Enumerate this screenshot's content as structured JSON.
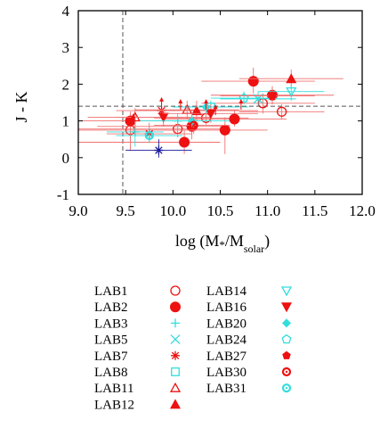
{
  "chart_data": {
    "type": "scatter",
    "xlabel_main": "log (M",
    "xlabel_star": "*",
    "xlabel_mid": "/M",
    "xlabel_sub": "solar",
    "xlabel_end": ")",
    "ylabel": "J - K",
    "xlim": [
      9.0,
      12.0
    ],
    "ylim": [
      -1,
      4
    ],
    "xticks": [
      "9.0",
      "9.5",
      "10.0",
      "10.5",
      "11.0",
      "11.5",
      "12.0"
    ],
    "yticks": [
      "-1",
      "0",
      "1",
      "2",
      "3",
      "4"
    ],
    "reference_lines": {
      "vertical_x": 9.47,
      "horizontal_y": 1.4
    },
    "colors": {
      "red": "#ee1111",
      "cyan": "#33dddd",
      "navy": "#1a1a99",
      "axis": "#000000",
      "guide": "#555555"
    },
    "legend_position": "bottom",
    "legend": [
      {
        "label": "LAB1",
        "marker": "open-circle",
        "color": "#ee1111"
      },
      {
        "label": "LAB2",
        "marker": "filled-circle",
        "color": "#ee1111"
      },
      {
        "label": "LAB3",
        "marker": "plus",
        "color": "#33dddd"
      },
      {
        "label": "LAB5",
        "marker": "x",
        "color": "#33dddd"
      },
      {
        "label": "LAB7",
        "marker": "asterisk",
        "color": "#ee1111"
      },
      {
        "label": "LAB8",
        "marker": "open-square",
        "color": "#33dddd"
      },
      {
        "label": "LAB11",
        "marker": "open-triangle",
        "color": "#ee1111"
      },
      {
        "label": "LAB12",
        "marker": "filled-triangle",
        "color": "#ee1111"
      },
      {
        "label": "LAB14",
        "marker": "open-triangle-down",
        "color": "#33dddd"
      },
      {
        "label": "LAB16",
        "marker": "filled-triangle-down",
        "color": "#ee1111"
      },
      {
        "label": "LAB20",
        "marker": "filled-diamond",
        "color": "#33dddd"
      },
      {
        "label": "LAB24",
        "marker": "open-pentagon",
        "color": "#33dddd"
      },
      {
        "label": "LAB27",
        "marker": "filled-pentagon",
        "color": "#ee1111"
      },
      {
        "label": "LAB30",
        "marker": "dot-circle",
        "color": "#ee1111"
      },
      {
        "label": "LAB31",
        "marker": "dot-circle",
        "color": "#33dddd"
      }
    ],
    "points": [
      {
        "x": 9.55,
        "y": 0.75,
        "marker": "open-circle",
        "color": "#ee1111",
        "xerr": [
          9.0,
          10.0
        ],
        "yerr": [
          0.45,
          1.0
        ]
      },
      {
        "x": 10.05,
        "y": 0.78,
        "marker": "open-circle",
        "color": "#ee1111",
        "xerr": [
          9.0,
          10.5
        ],
        "yerr": [
          0.55,
          1.0
        ]
      },
      {
        "x": 10.35,
        "y": 1.08,
        "marker": "open-circle",
        "color": "#ee1111",
        "xerr": [
          9.8,
          10.8
        ],
        "yerr": [
          0.9,
          1.25
        ]
      },
      {
        "x": 10.95,
        "y": 1.48,
        "marker": "open-circle",
        "color": "#ee1111",
        "xerr": [
          10.3,
          11.5
        ],
        "yerr": [
          1.2,
          1.75
        ]
      },
      {
        "x": 11.15,
        "y": 1.25,
        "marker": "open-circle",
        "color": "#ee1111",
        "xerr": [
          10.7,
          11.6
        ],
        "yerr": [
          1.05,
          1.45
        ]
      },
      {
        "x": 9.55,
        "y": 1.0,
        "marker": "filled-circle",
        "color": "#ee1111",
        "xerr": [
          9.0,
          10.0
        ],
        "yerr": [
          0.2,
          1.25
        ]
      },
      {
        "x": 10.12,
        "y": 0.42,
        "marker": "filled-circle",
        "color": "#ee1111",
        "xerr": [
          9.0,
          10.5
        ],
        "yerr": [
          0.1,
          0.75
        ]
      },
      {
        "x": 10.2,
        "y": 0.85,
        "marker": "filled-circle",
        "color": "#ee1111",
        "xerr": [
          9.2,
          10.6
        ],
        "yerr": [
          0.5,
          1.2
        ]
      },
      {
        "x": 10.55,
        "y": 0.75,
        "marker": "filled-circle",
        "color": "#ee1111",
        "xerr": [
          9.9,
          11.0
        ],
        "yerr": [
          0.1,
          1.1
        ]
      },
      {
        "x": 10.65,
        "y": 1.05,
        "marker": "filled-circle",
        "color": "#ee1111",
        "xerr": [
          9.9,
          11.2
        ],
        "yerr": [
          0.85,
          1.3
        ]
      },
      {
        "x": 10.85,
        "y": 2.08,
        "marker": "filled-circle",
        "color": "#ee1111",
        "xerr": [
          10.3,
          11.5
        ],
        "yerr": [
          1.75,
          2.45
        ]
      },
      {
        "x": 11.05,
        "y": 1.7,
        "marker": "filled-circle",
        "color": "#ee1111",
        "xerr": [
          10.4,
          11.7
        ],
        "yerr": [
          1.45,
          1.95
        ]
      },
      {
        "x": 9.6,
        "y": 0.7,
        "marker": "plus",
        "color": "#33dddd",
        "xerr": [
          9.3,
          9.9
        ],
        "yerr": [
          0.3,
          1.0
        ]
      },
      {
        "x": 10.05,
        "y": 1.0,
        "marker": "plus",
        "color": "#33dddd",
        "xerr": [
          9.6,
          10.4
        ],
        "yerr": [
          0.8,
          1.2
        ]
      },
      {
        "x": 10.9,
        "y": 1.6,
        "marker": "x",
        "color": "#33dddd",
        "xerr": [
          10.5,
          11.3
        ],
        "yerr": [
          1.4,
          1.8
        ]
      },
      {
        "x": 9.75,
        "y": 0.65,
        "marker": "asterisk",
        "color": "#ee1111",
        "xerr": [
          9.3,
          10.2
        ],
        "yerr": [
          0.4,
          0.95
        ]
      },
      {
        "x": 9.85,
        "y": 0.2,
        "marker": "asterisk",
        "color": "#1a1a99",
        "xerr": [
          9.5,
          10.2
        ],
        "yerr": [
          0.0,
          0.5
        ]
      },
      {
        "x": 9.88,
        "y": 1.28,
        "marker": "asterisk",
        "color": "#ee1111",
        "xerr": [
          9.4,
          10.3
        ],
        "yerr": [
          1.05,
          1.5
        ]
      },
      {
        "x": 10.4,
        "y": 1.38,
        "marker": "open-square",
        "color": "#33dddd",
        "xerr": [
          10.0,
          10.8
        ],
        "yerr": [
          1.2,
          1.55
        ]
      },
      {
        "x": 9.6,
        "y": 1.1,
        "marker": "open-triangle",
        "color": "#ee1111",
        "xerr": [
          9.1,
          10.1
        ],
        "yerr": [
          0.8,
          1.35
        ]
      },
      {
        "x": 10.15,
        "y": 1.3,
        "marker": "open-triangle",
        "color": "#ee1111",
        "xerr": [
          9.6,
          10.7
        ],
        "yerr": [
          1.05,
          1.55
        ]
      },
      {
        "x": 10.25,
        "y": 1.28,
        "marker": "filled-triangle",
        "color": "#ee1111",
        "xerr": [
          9.6,
          10.9
        ],
        "yerr": [
          1.0,
          1.55
        ]
      },
      {
        "x": 11.25,
        "y": 2.15,
        "marker": "filled-triangle",
        "color": "#ee1111",
        "xerr": [
          10.7,
          11.8
        ],
        "yerr": [
          1.9,
          2.4
        ]
      },
      {
        "x": 11.25,
        "y": 1.8,
        "marker": "open-triangle-down",
        "color": "#33dddd",
        "xerr": [
          10.9,
          11.6
        ],
        "yerr": [
          1.55,
          2.0
        ]
      },
      {
        "x": 9.9,
        "y": 1.1,
        "marker": "filled-triangle-down",
        "color": "#ee1111",
        "xerr": [
          9.4,
          10.4
        ],
        "yerr": [
          0.85,
          1.3
        ]
      },
      {
        "x": 10.4,
        "y": 1.2,
        "marker": "filled-triangle-down",
        "color": "#ee1111",
        "xerr": [
          9.9,
          10.9
        ],
        "yerr": [
          0.95,
          1.45
        ]
      },
      {
        "x": 10.2,
        "y": 1.0,
        "marker": "filled-diamond",
        "color": "#33dddd",
        "xerr": [
          9.8,
          10.6
        ],
        "yerr": [
          0.8,
          1.2
        ]
      },
      {
        "x": 10.35,
        "y": 1.38,
        "marker": "filled-diamond",
        "color": "#33dddd",
        "xerr": [
          10.0,
          10.7
        ],
        "yerr": [
          1.2,
          1.55
        ]
      },
      {
        "x": 10.75,
        "y": 1.62,
        "marker": "open-pentagon",
        "color": "#33dddd",
        "xerr": [
          10.4,
          11.1
        ],
        "yerr": [
          1.45,
          1.8
        ]
      },
      {
        "x": 11.05,
        "y": 1.68,
        "marker": "filled-pentagon",
        "color": "#ee1111",
        "xerr": [
          10.5,
          11.5
        ],
        "yerr": [
          1.45,
          1.9
        ]
      },
      {
        "x": 9.75,
        "y": 0.6,
        "marker": "dot-circle",
        "color": "#33dddd",
        "xerr": [
          9.4,
          10.1
        ],
        "yerr": [
          0.4,
          0.8
        ]
      },
      {
        "x": 10.22,
        "y": 0.88,
        "marker": "dot-circle",
        "color": "#ee1111",
        "xerr": [
          9.8,
          10.6
        ],
        "yerr": [
          0.65,
          1.1
        ]
      }
    ],
    "upper_limits": [
      {
        "x": 9.88,
        "y": 1.6,
        "color": "#ee1111"
      },
      {
        "x": 10.08,
        "y": 1.55,
        "color": "#ee1111"
      },
      {
        "x": 10.35,
        "y": 1.55,
        "color": "#ee1111"
      },
      {
        "x": 10.45,
        "y": 1.4,
        "color": "#ee1111"
      },
      {
        "x": 9.58,
        "y": 1.15,
        "color": "#ee1111"
      },
      {
        "x": 10.72,
        "y": 1.55,
        "color": "#ee1111"
      }
    ]
  }
}
